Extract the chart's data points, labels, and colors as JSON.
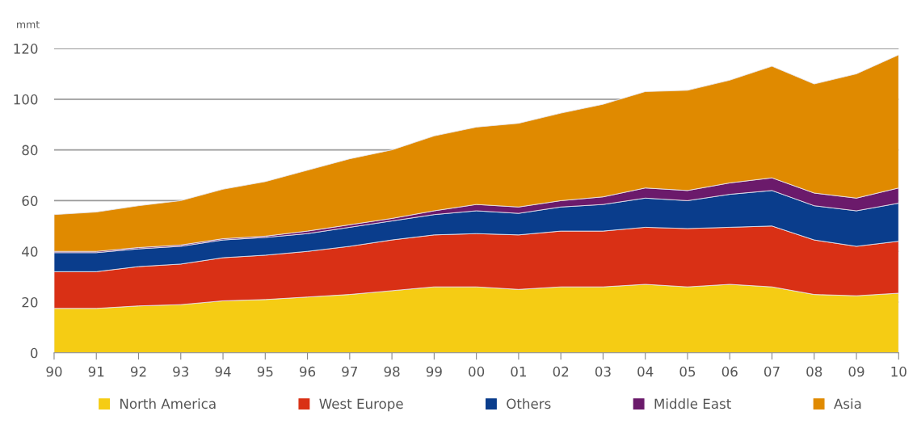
{
  "chart_data": {
    "type": "area",
    "stacked": true,
    "ylabel": "mmt",
    "categories": [
      "90",
      "91",
      "92",
      "93",
      "94",
      "95",
      "96",
      "97",
      "98",
      "99",
      "00",
      "01",
      "02",
      "03",
      "04",
      "05",
      "06",
      "07",
      "08",
      "09",
      "10"
    ],
    "series": [
      {
        "name": "North America",
        "color": "#f5cc14",
        "values": [
          17.5,
          17.5,
          18.5,
          19,
          20.5,
          21,
          22,
          23,
          24.5,
          26,
          26,
          25,
          26,
          26,
          27,
          26,
          27,
          26,
          23,
          22.5,
          23.5
        ]
      },
      {
        "name": "West Europe",
        "color": "#d93015",
        "values": [
          14.5,
          14.5,
          15.5,
          16,
          17,
          17.5,
          18,
          19,
          20,
          20.5,
          21,
          21.5,
          22,
          22,
          22.5,
          23,
          22.5,
          24,
          21.5,
          19.5,
          20.5
        ]
      },
      {
        "name": "Others",
        "color": "#0a3d8c",
        "values": [
          7.5,
          7.5,
          7,
          7,
          7,
          7,
          7,
          7.5,
          7.5,
          8,
          9,
          8.5,
          9.5,
          10.5,
          11.5,
          11,
          13,
          14,
          13.5,
          14,
          15
        ]
      },
      {
        "name": "Middle East",
        "color": "#6b1a6b",
        "values": [
          0.5,
          0.5,
          0.5,
          0.5,
          0.5,
          0.5,
          1,
          1,
          1,
          1.5,
          2.5,
          2.5,
          2.5,
          3,
          4,
          4,
          4.5,
          5,
          5,
          5,
          6
        ]
      },
      {
        "name": "Asia",
        "color": "#e08a00",
        "values": [
          14.5,
          15.5,
          16.5,
          17.5,
          19.5,
          21.5,
          24,
          26,
          27,
          29.5,
          30.5,
          33,
          34.5,
          36.5,
          38,
          39.5,
          40.5,
          44,
          43,
          49,
          52.5
        ]
      }
    ],
    "ylim": [
      0,
      120
    ],
    "yticks": [
      0,
      20,
      40,
      60,
      80,
      100,
      120
    ],
    "grid": "y",
    "legend": "bottom"
  }
}
